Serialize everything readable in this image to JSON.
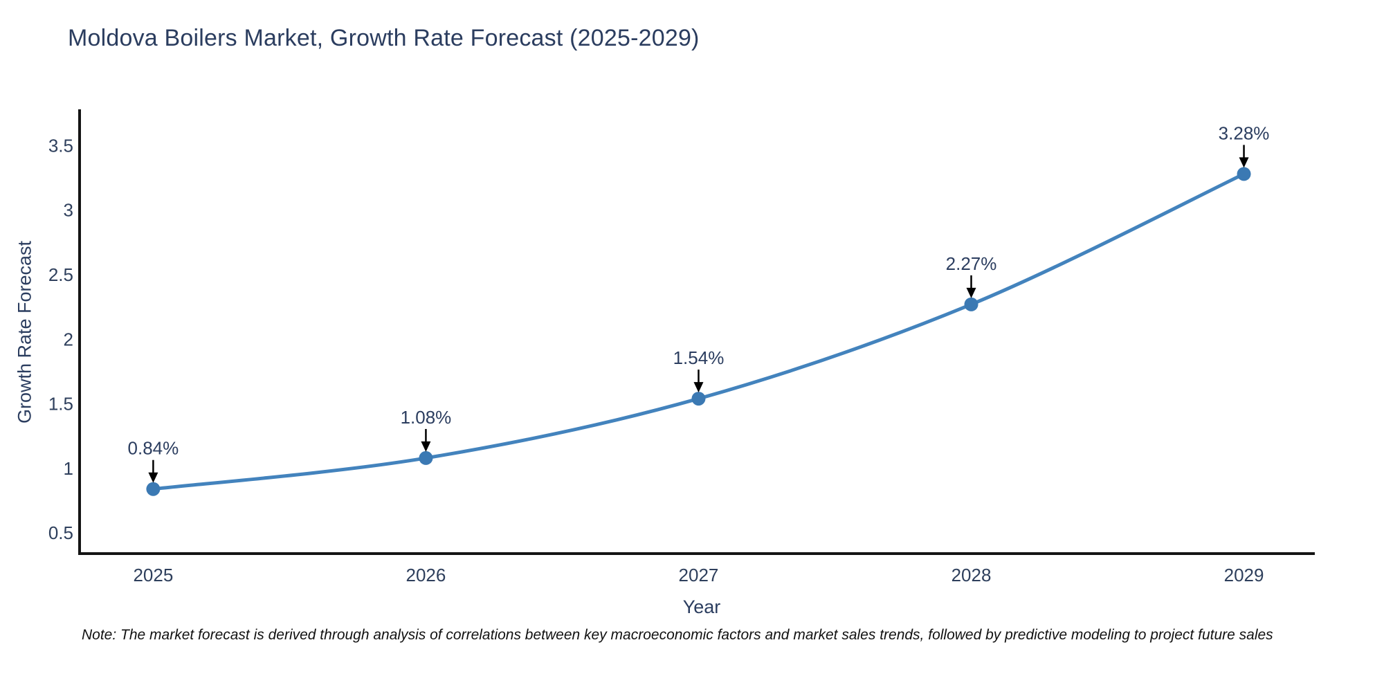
{
  "page": {
    "note": "Note: The market forecast is derived through analysis of correlations between key macroeconomic factors and market sales trends, followed by predictive modeling to project future sales"
  },
  "chart_data": {
    "type": "line",
    "title": "Moldova Boilers Market, Growth Rate Forecast (2025-2029)",
    "xlabel": "Year",
    "ylabel": "Growth Rate Forecast",
    "categories": [
      2025,
      2026,
      2027,
      2028,
      2029
    ],
    "values": [
      0.84,
      1.08,
      1.54,
      2.27,
      3.28
    ],
    "point_labels": [
      "0.84%",
      "1.08%",
      "1.54%",
      "2.27%",
      "3.28%"
    ],
    "yticks": [
      0.5,
      1,
      1.5,
      2,
      2.5,
      3,
      3.5
    ],
    "ytick_labels": [
      "0.5",
      "1",
      "1.5",
      "2",
      "2.5",
      "3",
      "3.5"
    ],
    "xlim": [
      2024.73,
      2029.26
    ],
    "ylim": [
      0.34,
      3.77
    ],
    "grid": false,
    "legend": "none",
    "smooth": true,
    "colors": {
      "line": "#4383bd",
      "marker": "#3b79b3",
      "axis": "#141414",
      "tick_text": "#2e3f5c",
      "annotation_text": "#2b3d5f",
      "annotation_arrow": "#000000",
      "background": "#ffffff"
    }
  }
}
